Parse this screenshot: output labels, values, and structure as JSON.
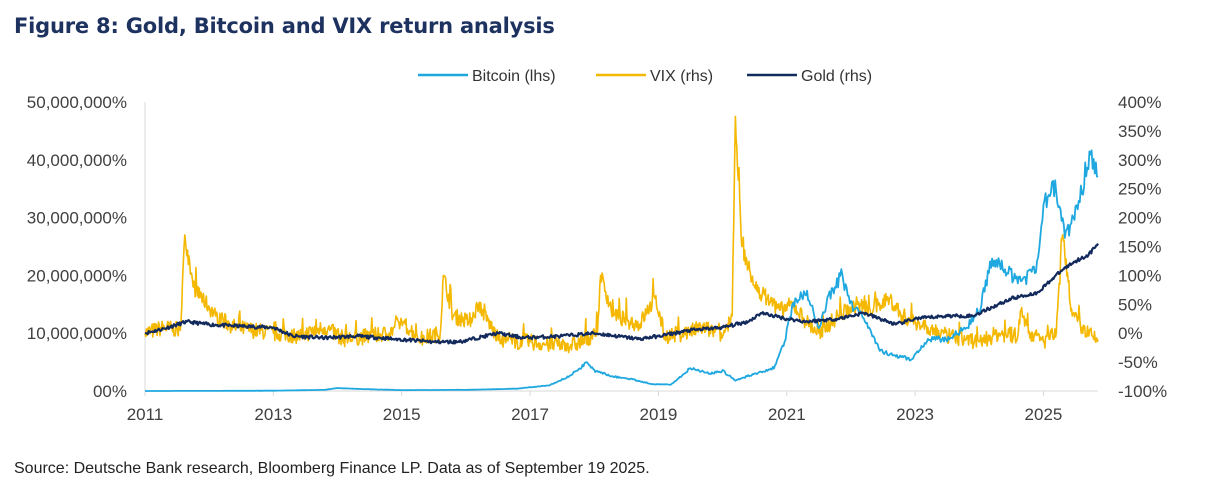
{
  "title": "Figure 8: Gold, Bitcoin and VIX return analysis",
  "source": "Source: Deutsche Bank research, Bloomberg Finance LP. Data as of September 19 2025.",
  "chart_data": {
    "type": "line",
    "legend": [
      "Bitcoin (lhs)",
      "VIX (rhs)",
      "Gold (rhs)"
    ],
    "legend_position": "top",
    "grid": false,
    "x_ticks": [
      "2011",
      "2013",
      "2015",
      "2017",
      "2019",
      "2021",
      "2023",
      "2025"
    ],
    "x_range": [
      2011.0,
      2025.85
    ],
    "y_left_ticks": [
      "00%",
      "10,000,000%",
      "20,000,000%",
      "30,000,000%",
      "40,000,000%",
      "50,000,000%"
    ],
    "y_left_range": [
      0,
      50000000
    ],
    "y_right_ticks": [
      "-100%",
      "-50%",
      "0%",
      "50%",
      "100%",
      "150%",
      "200%",
      "250%",
      "300%",
      "350%",
      "400%"
    ],
    "y_right_range": [
      -100,
      400
    ],
    "colors": {
      "bitcoin": "#1fa8e0",
      "vix": "#f5b800",
      "gold": "#132a5c",
      "title": "#1e3260"
    },
    "series": [
      {
        "name": "Bitcoin (lhs)",
        "axis": "left",
        "key": "bitcoin",
        "x": [
          2011.0,
          2012.0,
          2013.0,
          2013.8,
          2014.0,
          2014.5,
          2015.0,
          2016.0,
          2016.8,
          2017.3,
          2017.6,
          2017.9,
          2018.0,
          2018.3,
          2018.6,
          2018.9,
          2019.2,
          2019.5,
          2019.8,
          2020.0,
          2020.2,
          2020.5,
          2020.8,
          2020.95,
          2021.1,
          2021.3,
          2021.5,
          2021.65,
          2021.85,
          2022.0,
          2022.2,
          2022.45,
          2022.7,
          2022.95,
          2023.2,
          2023.5,
          2023.8,
          2024.0,
          2024.2,
          2024.5,
          2024.7,
          2024.9,
          2025.0,
          2025.2,
          2025.35,
          2025.55,
          2025.7,
          2025.85
        ],
        "y": [
          0,
          20000,
          50000,
          200000,
          500000,
          300000,
          150000,
          200000,
          400000,
          1000000,
          2500000,
          5000000,
          3500000,
          2500000,
          2000000,
          1200000,
          1100000,
          4000000,
          3000000,
          3500000,
          1800000,
          3000000,
          4000000,
          8000000,
          15000000,
          17000000,
          11000000,
          16000000,
          20000000,
          15000000,
          13000000,
          7000000,
          6000000,
          5500000,
          9000000,
          9000000,
          11000000,
          14000000,
          23000000,
          20000000,
          19000000,
          22000000,
          33000000,
          35000000,
          27000000,
          32000000,
          40000000,
          39000000
        ]
      },
      {
        "name": "VIX (rhs)",
        "axis": "right",
        "key": "vix",
        "x": [
          2011.0,
          2011.3,
          2011.55,
          2011.62,
          2011.75,
          2011.9,
          2012.1,
          2012.4,
          2012.7,
          2013.0,
          2013.4,
          2013.8,
          2014.1,
          2014.5,
          2014.8,
          2015.0,
          2015.3,
          2015.6,
          2015.65,
          2015.8,
          2016.05,
          2016.2,
          2016.5,
          2016.8,
          2017.0,
          2017.3,
          2017.7,
          2018.05,
          2018.1,
          2018.3,
          2018.7,
          2018.95,
          2019.1,
          2019.4,
          2019.7,
          2020.0,
          2020.15,
          2020.2,
          2020.3,
          2020.5,
          2020.7,
          2020.9,
          2021.1,
          2021.3,
          2021.5,
          2021.8,
          2022.1,
          2022.3,
          2022.6,
          2022.8,
          2023.0,
          2023.2,
          2023.5,
          2023.8,
          2024.0,
          2024.3,
          2024.6,
          2024.65,
          2024.8,
          2025.0,
          2025.2,
          2025.3,
          2025.45,
          2025.6,
          2025.85
        ],
        "y": [
          0,
          10,
          5,
          170,
          80,
          60,
          30,
          10,
          5,
          0,
          -5,
          10,
          -10,
          -5,
          0,
          20,
          -10,
          0,
          100,
          30,
          20,
          50,
          -10,
          -15,
          -15,
          -20,
          -20,
          0,
          100,
          30,
          15,
          60,
          -5,
          0,
          10,
          -5,
          30,
          375,
          150,
          80,
          60,
          40,
          50,
          20,
          0,
          30,
          50,
          40,
          60,
          30,
          20,
          10,
          -5,
          -10,
          -15,
          0,
          -5,
          40,
          0,
          -15,
          0,
          170,
          30,
          10,
          -15
        ]
      },
      {
        "name": "Gold (rhs)",
        "axis": "right",
        "key": "gold",
        "x": [
          2011.0,
          2011.3,
          2011.65,
          2012.0,
          2012.5,
          2013.0,
          2013.3,
          2013.8,
          2014.3,
          2014.9,
          2015.5,
          2015.9,
          2016.5,
          2016.9,
          2017.5,
          2018.0,
          2018.7,
          2019.0,
          2019.5,
          2020.0,
          2020.4,
          2020.6,
          2021.0,
          2021.3,
          2021.8,
          2022.2,
          2022.7,
          2023.0,
          2023.5,
          2023.9,
          2024.2,
          2024.5,
          2024.9,
          2025.1,
          2025.3,
          2025.5,
          2025.7,
          2025.85
        ],
        "y": [
          0,
          8,
          20,
          15,
          12,
          10,
          -5,
          -8,
          -5,
          -10,
          -15,
          -15,
          0,
          -8,
          -5,
          0,
          -10,
          -5,
          5,
          10,
          20,
          35,
          25,
          20,
          25,
          35,
          15,
          25,
          30,
          30,
          45,
          60,
          70,
          90,
          110,
          125,
          135,
          155
        ]
      }
    ]
  }
}
